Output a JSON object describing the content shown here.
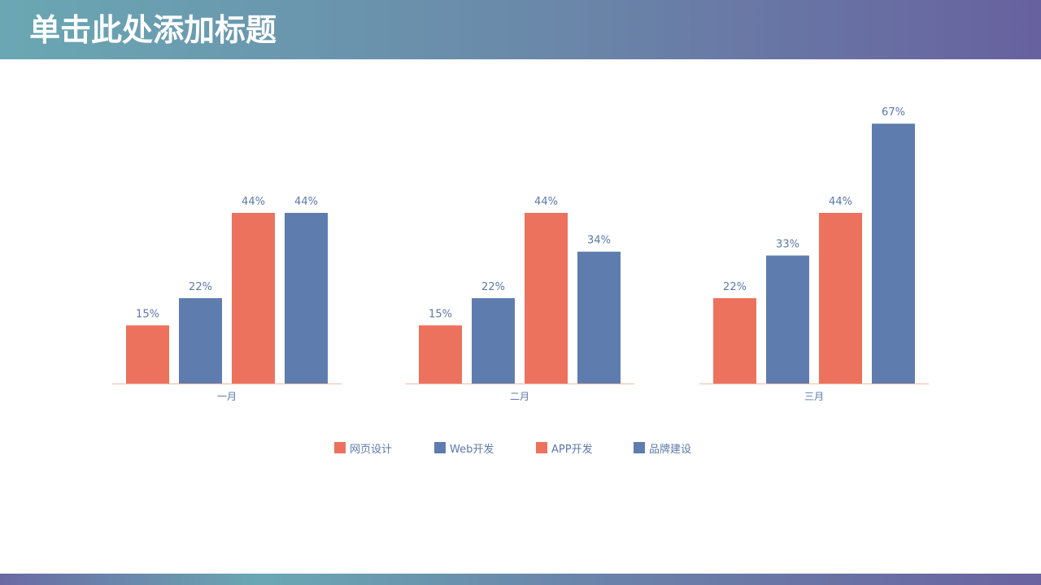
{
  "slide": {
    "title": "单击此处添加标题"
  },
  "colors": {
    "orange": "#ec725e",
    "blue": "#5f7cae",
    "axis": "#f0b8a8",
    "label": "#5b79ab"
  },
  "legend": [
    {
      "label": "网页设计",
      "color": "#ec725e"
    },
    {
      "label": "Web开发",
      "color": "#5f7cae"
    },
    {
      "label": "APP开发",
      "color": "#ec725e"
    },
    {
      "label": "品牌建设",
      "color": "#5f7cae"
    }
  ],
  "chart_data": {
    "type": "bar",
    "categories": [
      "一月",
      "二月",
      "三月"
    ],
    "series": [
      {
        "name": "网页设计",
        "values": [
          15,
          15,
          22
        ],
        "labels": [
          "15%",
          "15%",
          "22%"
        ],
        "color": "#ec725e"
      },
      {
        "name": "Web开发",
        "values": [
          22,
          22,
          33
        ],
        "labels": [
          "22%",
          "22%",
          "33%"
        ],
        "color": "#5f7cae"
      },
      {
        "name": "APP开发",
        "values": [
          44,
          44,
          44
        ],
        "labels": [
          "44%",
          "44%",
          "44%"
        ],
        "color": "#ec725e"
      },
      {
        "name": "品牌建设",
        "values": [
          44,
          34,
          67
        ],
        "labels": [
          "44%",
          "34%",
          "67%"
        ],
        "color": "#5f7cae"
      }
    ],
    "legend_position": "bottom",
    "grid": false
  }
}
